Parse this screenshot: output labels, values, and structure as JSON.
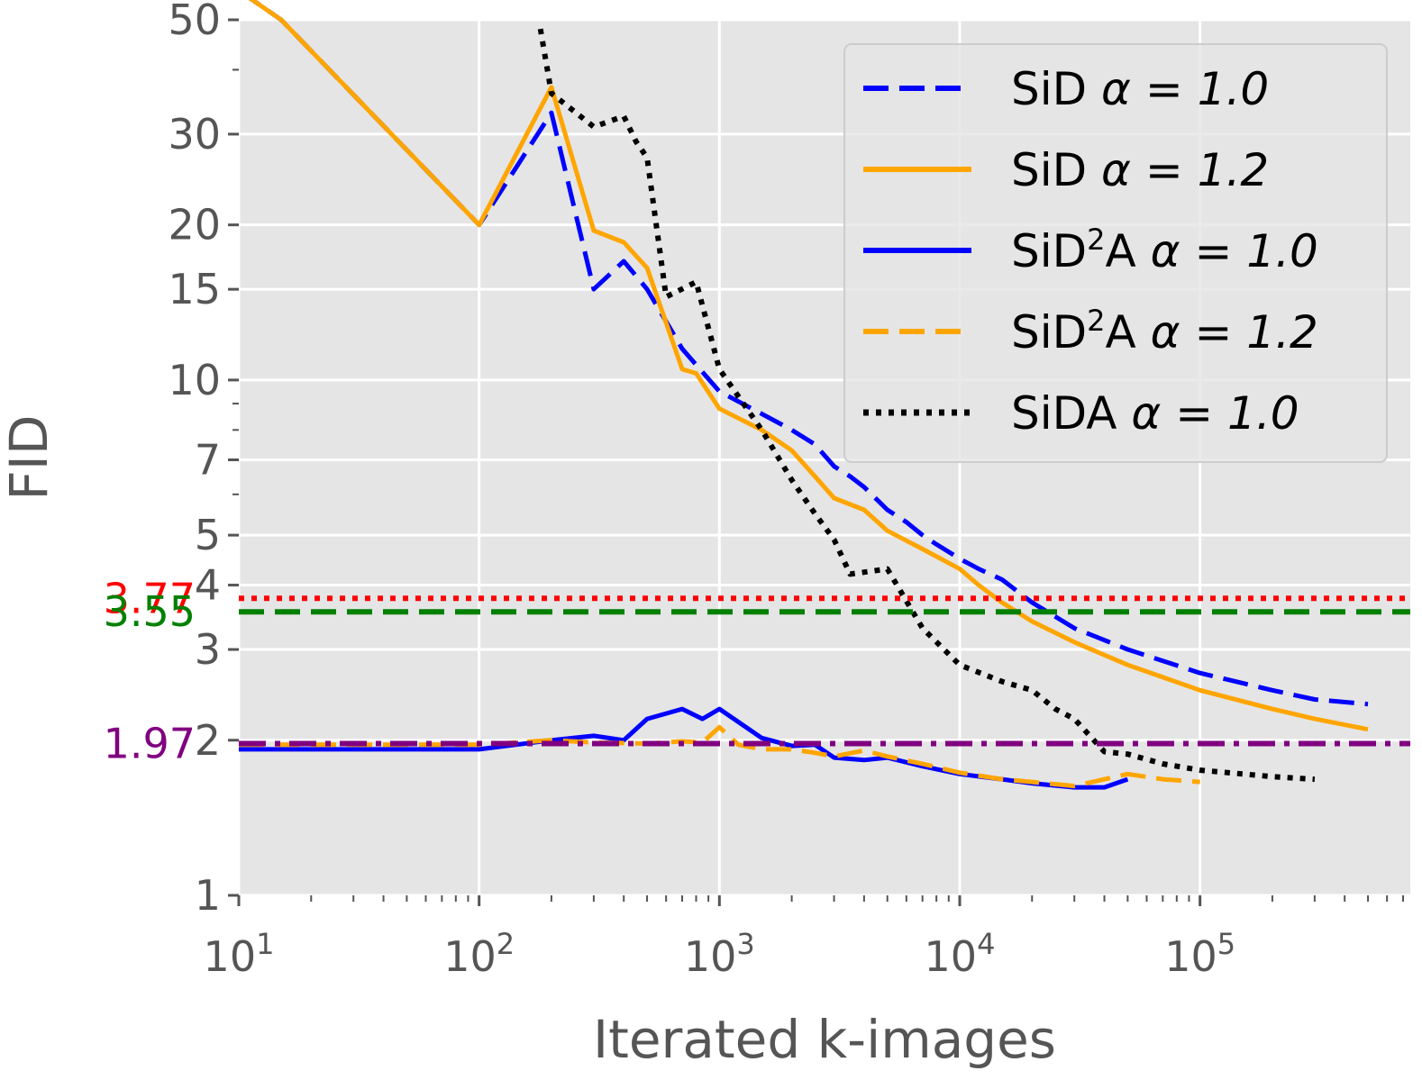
{
  "chart_data": {
    "type": "line",
    "title": "",
    "xlabel": "Iterated k-images",
    "ylabel": "FID",
    "xscale": "log",
    "yscale": "log",
    "xlim": [
      10,
      750000
    ],
    "ylim": [
      1,
      50
    ],
    "grid": true,
    "legend_position": "top-right",
    "x_ticks": [
      {
        "value": 10,
        "base": "10",
        "exp": "1"
      },
      {
        "value": 100,
        "base": "10",
        "exp": "2"
      },
      {
        "value": 1000,
        "base": "10",
        "exp": "3"
      },
      {
        "value": 10000,
        "base": "10",
        "exp": "4"
      },
      {
        "value": 100000,
        "base": "10",
        "exp": "5"
      }
    ],
    "y_ticks": [
      {
        "value": 1,
        "label": "1"
      },
      {
        "value": 2,
        "label": "2"
      },
      {
        "value": 3,
        "label": "3"
      },
      {
        "value": 4,
        "label": "4"
      },
      {
        "value": 5,
        "label": "5"
      },
      {
        "value": 7,
        "label": "7"
      },
      {
        "value": 10,
        "label": "10"
      },
      {
        "value": 15,
        "label": "15"
      },
      {
        "value": 20,
        "label": "20"
      },
      {
        "value": 30,
        "label": "30"
      },
      {
        "value": 50,
        "label": "50"
      }
    ],
    "reference_lines": [
      {
        "value": 3.77,
        "label": "3.77",
        "color": "#ff0000",
        "style": "dotted"
      },
      {
        "value": 3.55,
        "label": "3.55",
        "color": "#008000",
        "style": "dashed"
      },
      {
        "value": 1.97,
        "label": "1.97",
        "color": "#800080",
        "style": "dashdot"
      }
    ],
    "series": [
      {
        "name_prefix": "SiD",
        "name_sup": "",
        "name_suffix": "",
        "alpha": "α = 1.0",
        "color": "#0000ff",
        "style": "dashed",
        "x": [
          10,
          15,
          100,
          200,
          300,
          400,
          500,
          700,
          1000,
          1500,
          2000,
          2500,
          3000,
          3500,
          4000,
          5000,
          6000,
          7000,
          8000,
          10000,
          12000,
          15000,
          20000,
          30000,
          50000,
          100000,
          200000,
          300000,
          500000
        ],
        "y": [
          57,
          50,
          20,
          33,
          15,
          17,
          15,
          11.5,
          9.5,
          8.6,
          8.0,
          7.5,
          6.8,
          6.5,
          6.2,
          5.6,
          5.3,
          5.0,
          4.8,
          4.5,
          4.3,
          4.1,
          3.7,
          3.3,
          3.0,
          2.7,
          2.5,
          2.4,
          2.35
        ]
      },
      {
        "name_prefix": "SiD",
        "name_sup": "",
        "name_suffix": "",
        "alpha": "α = 1.2",
        "color": "#ffa500",
        "style": "solid",
        "x": [
          10,
          15,
          100,
          200,
          300,
          400,
          500,
          700,
          800,
          1000,
          1500,
          2000,
          2500,
          3000,
          4000,
          5000,
          7000,
          10000,
          12000,
          15000,
          20000,
          30000,
          50000,
          100000,
          200000,
          300000,
          500000
        ],
        "y": [
          57,
          50,
          20,
          37,
          19.5,
          18.5,
          16.5,
          10.5,
          10.3,
          8.8,
          8.0,
          7.3,
          6.5,
          5.9,
          5.6,
          5.1,
          4.7,
          4.3,
          4.0,
          3.7,
          3.4,
          3.1,
          2.8,
          2.5,
          2.3,
          2.2,
          2.1
        ]
      },
      {
        "name_prefix": "SiD",
        "name_sup": "2",
        "name_suffix": "A",
        "alpha": "α = 1.0",
        "color": "#0000ff",
        "style": "solid",
        "x": [
          10,
          50,
          100,
          200,
          300,
          400,
          500,
          700,
          850,
          1000,
          1500,
          2000,
          2500,
          3000,
          4000,
          5000,
          7000,
          10000,
          15000,
          20000,
          30000,
          40000,
          50000
        ],
        "y": [
          1.92,
          1.92,
          1.92,
          2.0,
          2.04,
          2.0,
          2.2,
          2.3,
          2.2,
          2.3,
          2.02,
          1.95,
          1.96,
          1.85,
          1.83,
          1.85,
          1.78,
          1.72,
          1.68,
          1.65,
          1.62,
          1.62,
          1.68
        ]
      },
      {
        "name_prefix": "SiD",
        "name_sup": "2",
        "name_suffix": "A",
        "alpha": "α = 1.2",
        "color": "#ffa500",
        "style": "dashed",
        "x": [
          10,
          50,
          100,
          200,
          300,
          500,
          700,
          850,
          1000,
          1200,
          1500,
          2000,
          2500,
          3000,
          4000,
          5000,
          7000,
          10000,
          15000,
          20000,
          30000,
          50000,
          70000,
          100000
        ],
        "y": [
          1.96,
          1.96,
          1.96,
          2.0,
          1.98,
          1.97,
          1.99,
          1.98,
          2.12,
          1.96,
          1.92,
          1.92,
          1.89,
          1.86,
          1.91,
          1.86,
          1.8,
          1.73,
          1.68,
          1.66,
          1.63,
          1.72,
          1.68,
          1.66
        ]
      },
      {
        "name_prefix": "SiDA",
        "name_sup": "",
        "name_suffix": "",
        "alpha": "α = 1.0",
        "color": "#000000",
        "style": "dotted",
        "x": [
          180,
          200,
          300,
          400,
          450,
          500,
          600,
          800,
          1000,
          1500,
          2000,
          2500,
          3000,
          3500,
          5000,
          7000,
          10000,
          15000,
          20000,
          25000,
          30000,
          40000,
          50000,
          70000,
          100000,
          200000,
          300000
        ],
        "y": [
          48,
          36,
          31,
          32.5,
          29,
          27,
          14.5,
          15.5,
          10.5,
          8.0,
          6.4,
          5.5,
          4.9,
          4.2,
          4.3,
          3.3,
          2.8,
          2.6,
          2.5,
          2.3,
          2.2,
          1.9,
          1.88,
          1.8,
          1.75,
          1.7,
          1.68
        ]
      }
    ]
  }
}
